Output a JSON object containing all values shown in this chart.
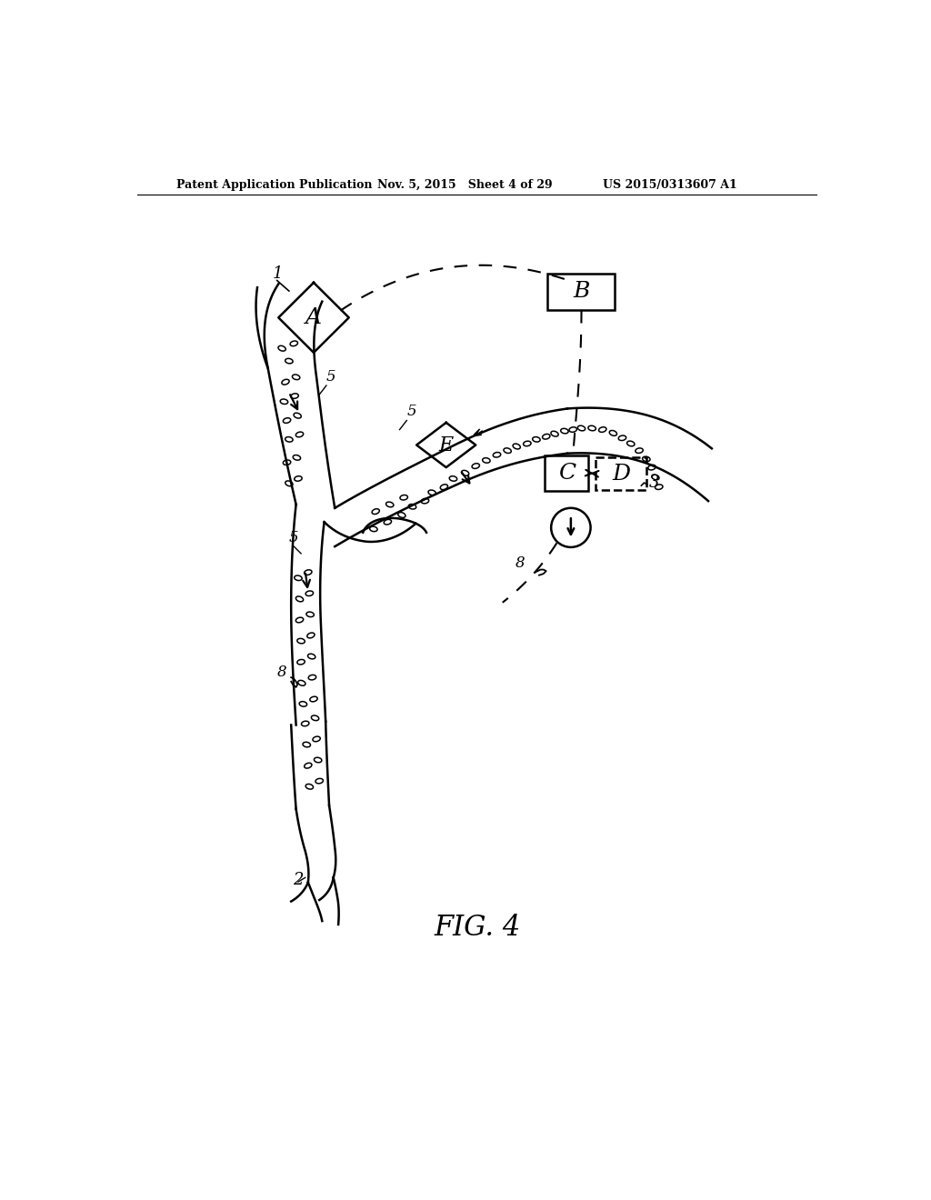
{
  "bg_color": "#ffffff",
  "header_left": "Patent Application Publication",
  "header_mid": "Nov. 5, 2015   Sheet 4 of 29",
  "header_right": "US 2015/0313607 A1",
  "fig_label": "FIG. 4"
}
